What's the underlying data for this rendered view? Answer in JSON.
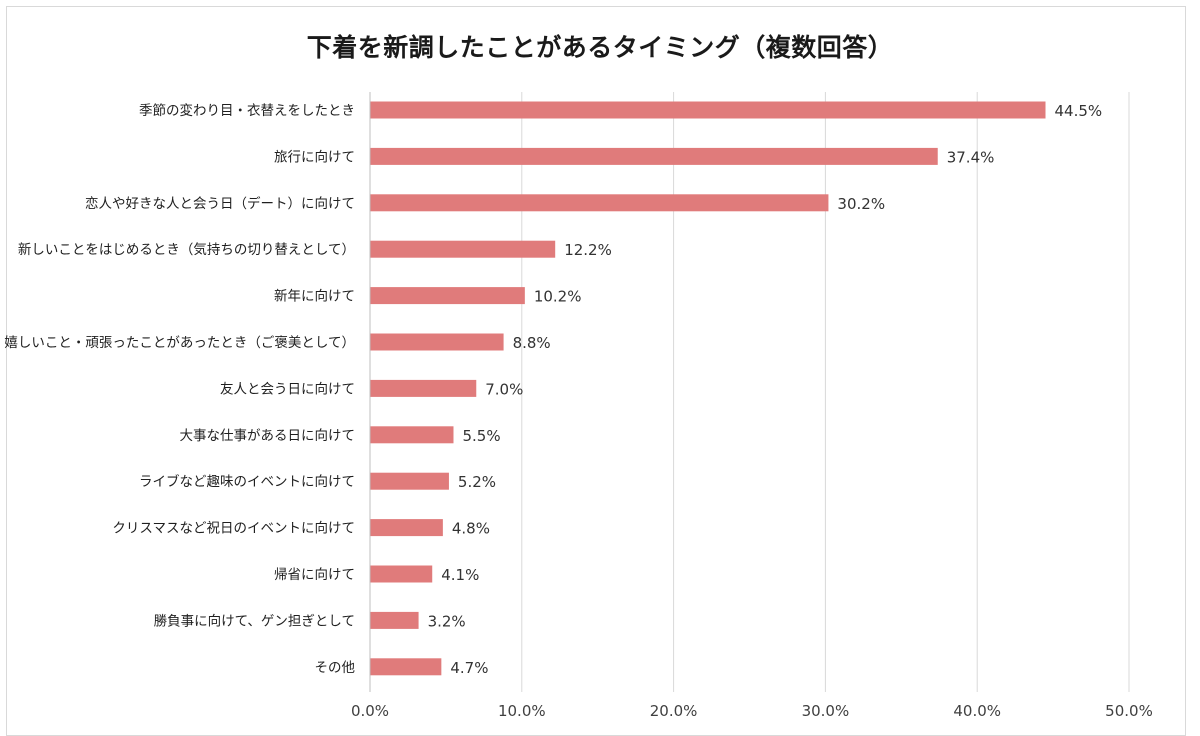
{
  "chart_data": {
    "type": "bar",
    "orientation": "horizontal",
    "title": "下着を新調したことがあるタイミング（複数回答）",
    "xlabel": "",
    "ylabel": "",
    "xlim": [
      0,
      50
    ],
    "x_ticks": [
      "0.0%",
      "10.0%",
      "20.0%",
      "30.0%",
      "40.0%",
      "50.0%"
    ],
    "grid": true,
    "legend": "none",
    "categories": [
      "季節の変わり目・衣替えをしたとき",
      "旅行に向けて",
      "恋人や好きな人と会う日（デート）に向けて",
      "新しいことをはじめるとき（気持ちの切り替えとして）",
      "新年に向けて",
      "嬉しいこと・頑張ったことがあったとき（ご褒美として）",
      "友人と会う日に向けて",
      "大事な仕事がある日に向けて",
      "ライブなど趣味のイベントに向けて",
      "クリスマスなど祝日のイベントに向けて",
      "帰省に向けて",
      "勝負事に向けて、ゲン担ぎとして",
      "その他"
    ],
    "values": [
      44.5,
      37.4,
      30.2,
      12.2,
      10.2,
      8.8,
      7.0,
      5.5,
      5.2,
      4.8,
      4.1,
      3.2,
      4.7
    ],
    "value_labels": [
      "44.5%",
      "37.4%",
      "30.2%",
      "12.2%",
      "10.2%",
      "8.8%",
      "7.0%",
      "5.5%",
      "5.2%",
      "4.8%",
      "4.1%",
      "3.2%",
      "4.7%"
    ],
    "bar_color": "#e07b7b",
    "grid_color": "#d9d9d9"
  }
}
